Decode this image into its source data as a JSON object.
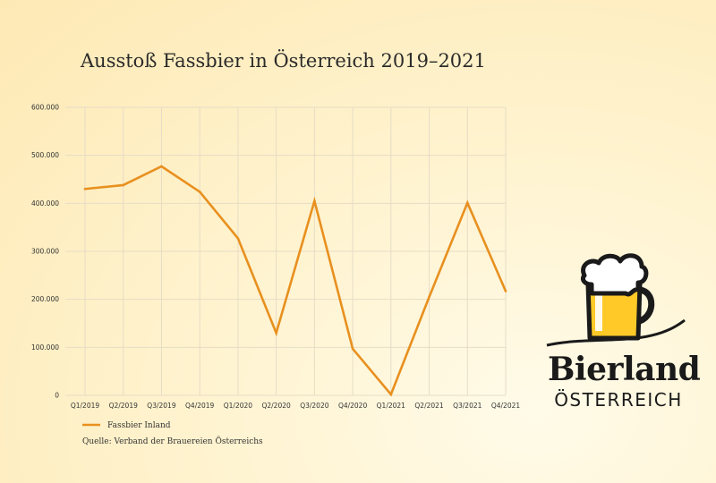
{
  "chart_data": {
    "type": "line",
    "title": "Ausstoß Fassbier in Österreich 2019–2021",
    "categories": [
      "Q1/2019",
      "Q2/2019",
      "Q3/2019",
      "Q4/2019",
      "Q1/2020",
      "Q2/2020",
      "Q3/2020",
      "Q4/2020",
      "Q1/2021",
      "Q2/2021",
      "Q3/2021",
      "Q4/2021"
    ],
    "y_ticks": [
      "0",
      "100.000",
      "200.000",
      "300.000",
      "400.000",
      "500.000",
      "600.000"
    ],
    "ylim": [
      0,
      600000
    ],
    "grid": true,
    "legend_position": "bottom-left",
    "series": [
      {
        "name": "Fassbier Inland",
        "color": "#e8901f",
        "values": [
          430000,
          438000,
          477000,
          424000,
          327000,
          130000,
          405000,
          97000,
          2000,
          205000,
          401000,
          217000
        ]
      }
    ]
  },
  "source": "Quelle: Verband der Brauereien Österreichs",
  "logo": {
    "word": "Bierland",
    "sub": "ÖSTERREICH",
    "colors": {
      "beer": "#ffc928",
      "outline": "#1a1a1a",
      "foam": "#ffffff"
    }
  }
}
